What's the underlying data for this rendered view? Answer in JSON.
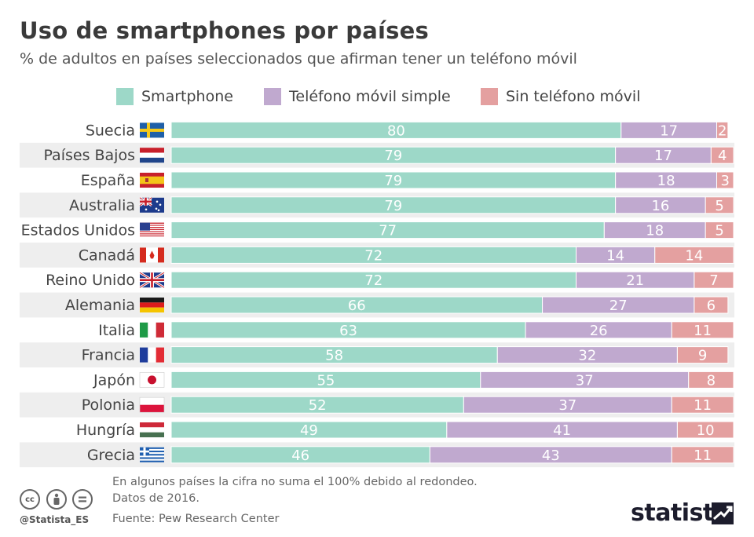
{
  "header": {
    "title": "Uso de smartphones por países",
    "subtitle": "% de adultos en países seleccionados que afirman tener un teléfono móvil"
  },
  "legend": [
    {
      "label": "Smartphone",
      "color": "#9dd8c8"
    },
    {
      "label": "Teléfono móvil simple",
      "color": "#c0a9cf"
    },
    {
      "label": "Sin teléfono móvil",
      "color": "#e4a0a0"
    }
  ],
  "chart_data": {
    "type": "bar",
    "orientation": "horizontal",
    "stacked": true,
    "title": "Uso de smartphones por países",
    "categories": [
      "Suecia",
      "Países Bajos",
      "España",
      "Australia",
      "Estados Unidos",
      "Canadá",
      "Reino Unido",
      "Alemania",
      "Italia",
      "Francia",
      "Japón",
      "Polonia",
      "Hungría",
      "Grecia"
    ],
    "flags": [
      "flag-sweden",
      "flag-netherlands",
      "flag-spain",
      "flag-australia",
      "flag-usa",
      "flag-canada",
      "flag-uk",
      "flag-germany",
      "flag-italy",
      "flag-france",
      "flag-japan",
      "flag-poland",
      "flag-hungary",
      "flag-greece"
    ],
    "series": [
      {
        "name": "Smartphone",
        "color": "#9dd8c8",
        "values": [
          80,
          79,
          79,
          79,
          77,
          72,
          72,
          66,
          63,
          58,
          55,
          52,
          49,
          46
        ]
      },
      {
        "name": "Teléfono móvil simple",
        "color": "#c0a9cf",
        "values": [
          17,
          17,
          18,
          16,
          18,
          14,
          21,
          27,
          26,
          32,
          37,
          37,
          41,
          43
        ]
      },
      {
        "name": "Sin teléfono móvil",
        "color": "#e4a0a0",
        "values": [
          2,
          4,
          3,
          5,
          5,
          14,
          7,
          6,
          11,
          9,
          8,
          11,
          10,
          11
        ]
      }
    ],
    "xlim": [
      0,
      100
    ]
  },
  "footer": {
    "notes": [
      "En algunos países la cifra no suma el 100% debido al redondeo.",
      "Datos de 2016."
    ],
    "source": "Fuente: Pew Research Center",
    "handle": "@Statista_ES",
    "logo": "statista"
  }
}
